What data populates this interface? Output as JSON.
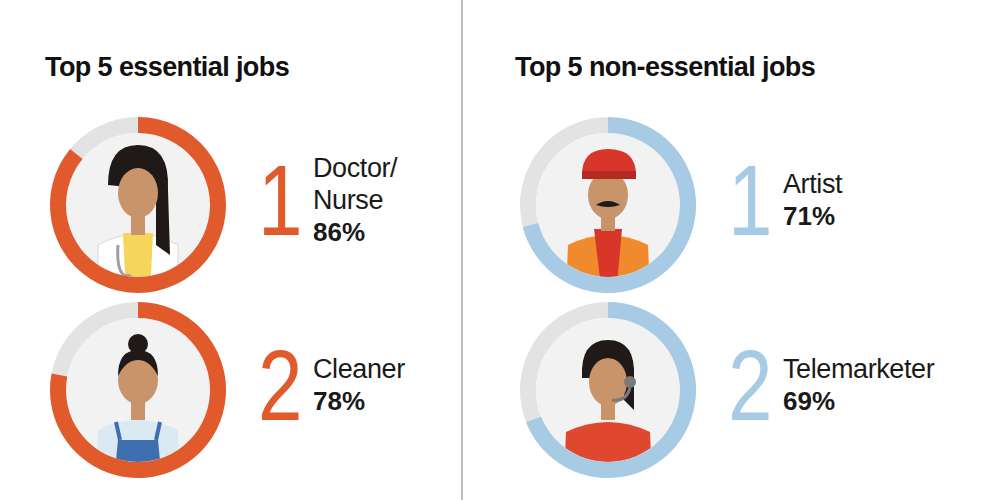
{
  "chart_data": [
    {
      "type": "pie",
      "title": "Top 5 essential jobs",
      "categories": [
        "Doctor/ Nurse",
        "Cleaner"
      ],
      "ranks": [
        1,
        2
      ],
      "values": [
        86,
        78
      ],
      "value_labels": [
        "86%",
        "78%"
      ],
      "color": "#e05a2c",
      "data_labels": true
    },
    {
      "type": "pie",
      "title": "Top 5 non-essential jobs",
      "categories": [
        "Artist",
        "Telemarketer"
      ],
      "ranks": [
        1,
        2
      ],
      "values": [
        71,
        69
      ],
      "value_labels": [
        "71%",
        "69%"
      ],
      "color": "#a8cbe5",
      "data_labels": true
    }
  ]
}
